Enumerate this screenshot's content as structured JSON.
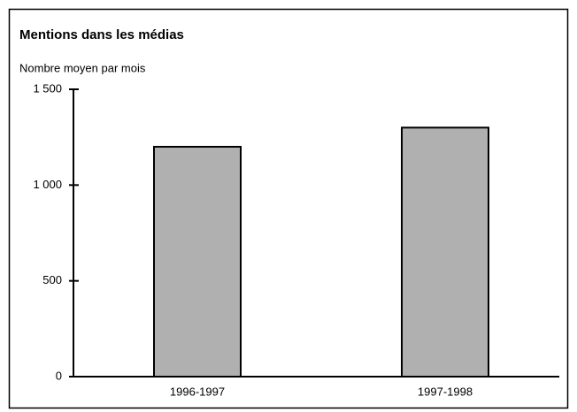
{
  "chart_data": {
    "type": "bar",
    "title": "Mentions dans les médias",
    "subtitle": "Nombre moyen par mois",
    "categories": [
      "1996-1997",
      "1997-1998"
    ],
    "values": [
      1200,
      1300
    ],
    "color": "#b0b0b0",
    "ylim": [
      0,
      1500
    ],
    "yticks": [
      0,
      500,
      {
        "value": 1000,
        "label": "1 000"
      },
      {
        "value": 1500,
        "label": "1 500"
      }
    ],
    "grid": false
  }
}
